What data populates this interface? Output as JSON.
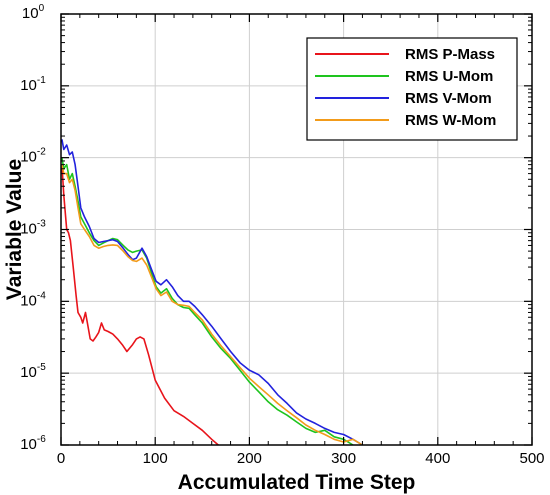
{
  "chart_data": {
    "type": "line",
    "title": "",
    "xlabel": "Accumulated Time Step",
    "ylabel": "Variable Value",
    "xlim": [
      0,
      500
    ],
    "ylim": [
      1e-06,
      1
    ],
    "yscale": "log",
    "grid": true,
    "legend_position": "top-right",
    "x_ticks": [
      "0",
      "100",
      "200",
      "300",
      "400",
      "500"
    ],
    "y_ticks": [
      {
        "base": "10",
        "exp": "0"
      },
      {
        "base": "10",
        "exp": "-1"
      },
      {
        "base": "10",
        "exp": "-2"
      },
      {
        "base": "10",
        "exp": "-3"
      },
      {
        "base": "10",
        "exp": "-4"
      },
      {
        "base": "10",
        "exp": "-5"
      },
      {
        "base": "10",
        "exp": "-6"
      }
    ],
    "series": [
      {
        "name": "RMS P-Mass",
        "color": "#e8141b",
        "points": [
          [
            1,
            0.008
          ],
          [
            3,
            0.003
          ],
          [
            6,
            0.001
          ],
          [
            8,
            0.0009
          ],
          [
            10,
            0.0007
          ],
          [
            13,
            0.0003
          ],
          [
            16,
            0.00012
          ],
          [
            18,
            7e-05
          ],
          [
            21,
            6e-05
          ],
          [
            23,
            5e-05
          ],
          [
            26,
            7e-05
          ],
          [
            28,
            5e-05
          ],
          [
            31,
            3e-05
          ],
          [
            34,
            2.8e-05
          ],
          [
            37,
            3.2e-05
          ],
          [
            40,
            3.7e-05
          ],
          [
            43,
            5e-05
          ],
          [
            46,
            4e-05
          ],
          [
            50,
            3.8e-05
          ],
          [
            55,
            3.5e-05
          ],
          [
            60,
            3e-05
          ],
          [
            65,
            2.5e-05
          ],
          [
            70,
            2e-05
          ],
          [
            76,
            2.5e-05
          ],
          [
            80,
            3e-05
          ],
          [
            84,
            3.2e-05
          ],
          [
            88,
            3e-05
          ],
          [
            93,
            1.8e-05
          ],
          [
            100,
            8e-06
          ],
          [
            110,
            4.5e-06
          ],
          [
            120,
            3e-06
          ],
          [
            130,
            2.5e-06
          ],
          [
            140,
            2e-06
          ],
          [
            150,
            1.6e-06
          ],
          [
            160,
            1.2e-06
          ],
          [
            167,
            1e-06
          ]
        ]
      },
      {
        "name": "RMS U-Mom",
        "color": "#1ec41e",
        "points": [
          [
            1,
            0.01
          ],
          [
            3,
            0.007
          ],
          [
            6,
            0.008
          ],
          [
            9,
            0.005
          ],
          [
            12,
            0.006
          ],
          [
            15,
            0.004
          ],
          [
            18,
            0.0025
          ],
          [
            21,
            0.0015
          ],
          [
            25,
            0.0012
          ],
          [
            30,
            0.0009
          ],
          [
            35,
            0.0007
          ],
          [
            40,
            0.0006
          ],
          [
            45,
            0.00065
          ],
          [
            50,
            0.0007
          ],
          [
            55,
            0.00075
          ],
          [
            60,
            0.00072
          ],
          [
            66,
            0.0006
          ],
          [
            71,
            0.00052
          ],
          [
            76,
            0.00048
          ],
          [
            80,
            0.0005
          ],
          [
            86,
            0.00052
          ],
          [
            91,
            0.0004
          ],
          [
            96,
            0.00025
          ],
          [
            101,
            0.00016
          ],
          [
            106,
            0.00013
          ],
          [
            112,
            0.00015
          ],
          [
            118,
            0.00011
          ],
          [
            124,
            9e-05
          ],
          [
            130,
            8.2e-05
          ],
          [
            136,
            8e-05
          ],
          [
            142,
            6.5e-05
          ],
          [
            150,
            5e-05
          ],
          [
            160,
            3.2e-05
          ],
          [
            170,
            2.2e-05
          ],
          [
            180,
            1.6e-05
          ],
          [
            190,
            1.1e-05
          ],
          [
            200,
            7.5e-06
          ],
          [
            210,
            5.5e-06
          ],
          [
            220,
            4e-06
          ],
          [
            230,
            3.1e-06
          ],
          [
            240,
            2.6e-06
          ],
          [
            250,
            2.1e-06
          ],
          [
            260,
            1.7e-06
          ],
          [
            270,
            1.5e-06
          ],
          [
            280,
            1.6e-06
          ],
          [
            290,
            1.3e-06
          ],
          [
            300,
            1.2e-06
          ],
          [
            310,
            1e-06
          ]
        ]
      },
      {
        "name": "RMS V-Mom",
        "color": "#2222dd",
        "points": [
          [
            1,
            0.018
          ],
          [
            3,
            0.013
          ],
          [
            6,
            0.015
          ],
          [
            9,
            0.011
          ],
          [
            12,
            0.012
          ],
          [
            15,
            0.008
          ],
          [
            18,
            0.004
          ],
          [
            21,
            0.002
          ],
          [
            25,
            0.0015
          ],
          [
            30,
            0.0011
          ],
          [
            35,
            0.00075
          ],
          [
            40,
            0.00066
          ],
          [
            45,
            0.00068
          ],
          [
            50,
            0.0007
          ],
          [
            55,
            0.00072
          ],
          [
            60,
            0.00068
          ],
          [
            66,
            0.00055
          ],
          [
            71,
            0.00045
          ],
          [
            76,
            0.00038
          ],
          [
            80,
            0.0004
          ],
          [
            86,
            0.00055
          ],
          [
            91,
            0.00042
          ],
          [
            96,
            0.00028
          ],
          [
            101,
            0.00019
          ],
          [
            106,
            0.00017
          ],
          [
            112,
            0.0002
          ],
          [
            118,
            0.00016
          ],
          [
            124,
            0.00012
          ],
          [
            130,
            0.0001
          ],
          [
            136,
            0.0001
          ],
          [
            142,
            8.5e-05
          ],
          [
            150,
            6.5e-05
          ],
          [
            160,
            4.5e-05
          ],
          [
            170,
            3e-05
          ],
          [
            180,
            2e-05
          ],
          [
            190,
            1.4e-05
          ],
          [
            200,
            1.1e-05
          ],
          [
            210,
            9.5e-06
          ],
          [
            220,
            7.2e-06
          ],
          [
            230,
            5e-06
          ],
          [
            240,
            3.8e-06
          ],
          [
            250,
            2.8e-06
          ],
          [
            260,
            2.3e-06
          ],
          [
            270,
            2e-06
          ],
          [
            280,
            1.7e-06
          ],
          [
            290,
            1.5e-06
          ],
          [
            300,
            1.4e-06
          ],
          [
            310,
            1.2e-06
          ],
          [
            320,
            1e-06
          ]
        ]
      },
      {
        "name": "RMS W-Mom",
        "color": "#f29b1a",
        "points": [
          [
            1,
            0.008
          ],
          [
            3,
            0.006
          ],
          [
            6,
            0.006
          ],
          [
            9,
            0.0045
          ],
          [
            12,
            0.005
          ],
          [
            15,
            0.0035
          ],
          [
            18,
            0.002
          ],
          [
            21,
            0.0012
          ],
          [
            25,
            0.001
          ],
          [
            30,
            0.0008
          ],
          [
            35,
            0.0006
          ],
          [
            40,
            0.00055
          ],
          [
            45,
            0.00058
          ],
          [
            50,
            0.0006
          ],
          [
            55,
            0.00061
          ],
          [
            60,
            0.0006
          ],
          [
            66,
            0.0005
          ],
          [
            71,
            0.00042
          ],
          [
            76,
            0.00037
          ],
          [
            80,
            0.00036
          ],
          [
            86,
            0.0004
          ],
          [
            91,
            0.00032
          ],
          [
            96,
            0.00022
          ],
          [
            101,
            0.00015
          ],
          [
            106,
            0.00012
          ],
          [
            112,
            0.000135
          ],
          [
            118,
            0.0001
          ],
          [
            124,
            9e-05
          ],
          [
            130,
            8.8e-05
          ],
          [
            136,
            8.5e-05
          ],
          [
            142,
            7e-05
          ],
          [
            150,
            5.5e-05
          ],
          [
            160,
            3.5e-05
          ],
          [
            170,
            2.4e-05
          ],
          [
            180,
            1.7e-05
          ],
          [
            190,
            1.2e-05
          ],
          [
            200,
            8.5e-06
          ],
          [
            210,
            6.5e-06
          ],
          [
            220,
            5e-06
          ],
          [
            230,
            3.8e-06
          ],
          [
            240,
            3e-06
          ],
          [
            250,
            2.4e-06
          ],
          [
            260,
            1.9e-06
          ],
          [
            270,
            1.6e-06
          ],
          [
            280,
            1.4e-06
          ],
          [
            290,
            1.2e-06
          ],
          [
            300,
            1.1e-06
          ],
          [
            310,
            1.2e-06
          ],
          [
            320,
            1e-06
          ]
        ]
      }
    ]
  }
}
